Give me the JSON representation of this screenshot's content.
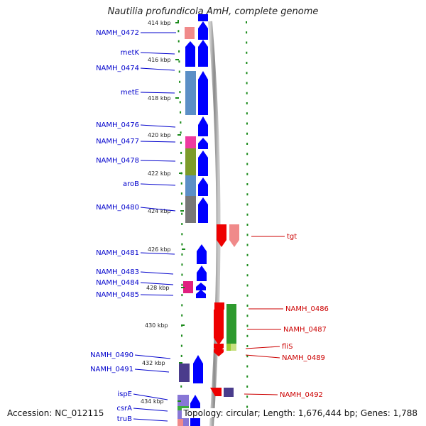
{
  "title": "Nautilia profundicola AmH, complete genome",
  "footer": {
    "accession": "Accession: NC_012115",
    "topology": "Topology: circular; Length: 1,676,444 bp; Genes: 1,788"
  },
  "colors": {
    "forward_label": "#0000cc",
    "reverse_label": "#cc0000",
    "tick": "#1a8a1a",
    "backbone": "#888888"
  },
  "kbp_ticks": [
    {
      "label": "414 kbp"
    },
    {
      "label": "416 kbp"
    },
    {
      "label": "418 kbp"
    },
    {
      "label": "420 kbp"
    },
    {
      "label": "422 kbp"
    },
    {
      "label": "424 kbp"
    },
    {
      "label": "426 kbp"
    },
    {
      "label": "428 kbp"
    },
    {
      "label": "430 kbp"
    },
    {
      "label": "432 kbp"
    },
    {
      "label": "434 kbp"
    }
  ],
  "forward_genes": [
    {
      "label": "NAMH_0472"
    },
    {
      "label": "metK"
    },
    {
      "label": "NAMH_0474"
    },
    {
      "label": "metE"
    },
    {
      "label": "NAMH_0476"
    },
    {
      "label": "NAMH_0477"
    },
    {
      "label": "NAMH_0478"
    },
    {
      "label": "aroB"
    },
    {
      "label": "NAMH_0480"
    },
    {
      "label": "NAMH_0481"
    },
    {
      "label": "NAMH_0483"
    },
    {
      "label": "NAMH_0484"
    },
    {
      "label": "NAMH_0485"
    },
    {
      "label": "NAMH_0490"
    },
    {
      "label": "NAMH_0491"
    },
    {
      "label": "ispE"
    },
    {
      "label": "csrA"
    },
    {
      "label": "truB"
    }
  ],
  "reverse_genes": [
    {
      "label": "tgt"
    },
    {
      "label": "NAMH_0486"
    },
    {
      "label": "NAMH_0487"
    },
    {
      "label": "fliS"
    },
    {
      "label": "NAMH_0489"
    },
    {
      "label": "NAMH_0492"
    }
  ]
}
